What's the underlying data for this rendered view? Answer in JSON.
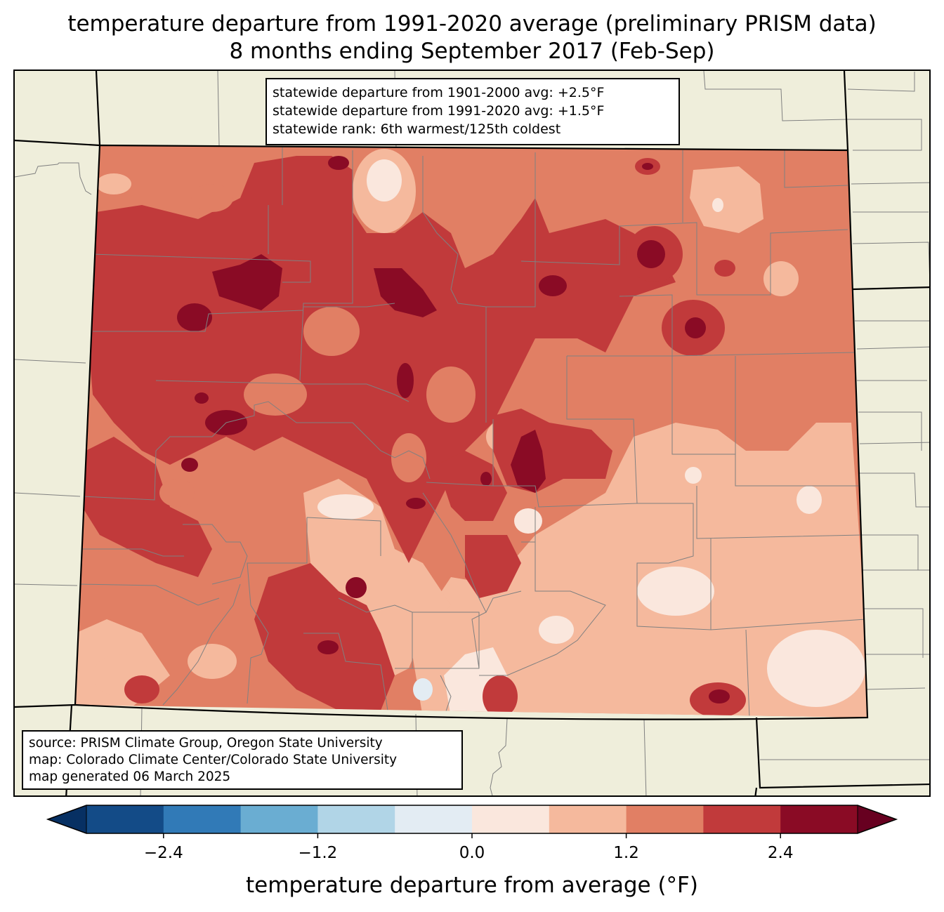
{
  "title": {
    "line1": "temperature departure from 1991-2020 average (preliminary PRISM data)",
    "line2": "8 months ending September 2017 (Feb-Sep)"
  },
  "stats": {
    "line1": "statewide departure from 1901-2000 avg: +2.5°F",
    "line2": "statewide departure from 1991-2020 avg: +1.5°F",
    "line3": "statewide rank: 6th warmest/125th coldest"
  },
  "source": {
    "line1": "source: PRISM Climate Group, Oregon State University",
    "line2": "map: Colorado Climate Center/Colorado State University",
    "line3": "map generated 06 March 2025"
  },
  "colorbar": {
    "label": "temperature departure from average (°F)",
    "ticks": [
      "−2.4",
      "−1.2",
      "0.0",
      "1.2",
      "2.4"
    ],
    "tick_values": [
      -2.4,
      -1.2,
      0.0,
      1.2,
      2.4
    ],
    "range": [
      -3.0,
      3.0
    ],
    "bins": [
      {
        "min": -3.0,
        "max": -2.4,
        "color": "#134b87"
      },
      {
        "min": -2.4,
        "max": -1.8,
        "color": "#317ab7"
      },
      {
        "min": -1.8,
        "max": -1.2,
        "color": "#6aadd2"
      },
      {
        "min": -1.2,
        "max": -0.6,
        "color": "#b1d5e7"
      },
      {
        "min": -0.6,
        "max": 0.0,
        "color": "#e3ecf3"
      },
      {
        "min": 0.0,
        "max": 0.6,
        "color": "#fae7dd"
      },
      {
        "min": 0.6,
        "max": 1.2,
        "color": "#f5b99d"
      },
      {
        "min": 1.2,
        "max": 1.8,
        "color": "#e17f64"
      },
      {
        "min": 1.8,
        "max": 2.4,
        "color": "#c13a3b"
      },
      {
        "min": 2.4,
        "max": 3.0,
        "color": "#8a0b25"
      }
    ],
    "under_color": "#073063",
    "over_color": "#670020"
  },
  "colors": {
    "land": "#efeedb",
    "county_lines": "#808080",
    "state_lines": "#000000"
  }
}
